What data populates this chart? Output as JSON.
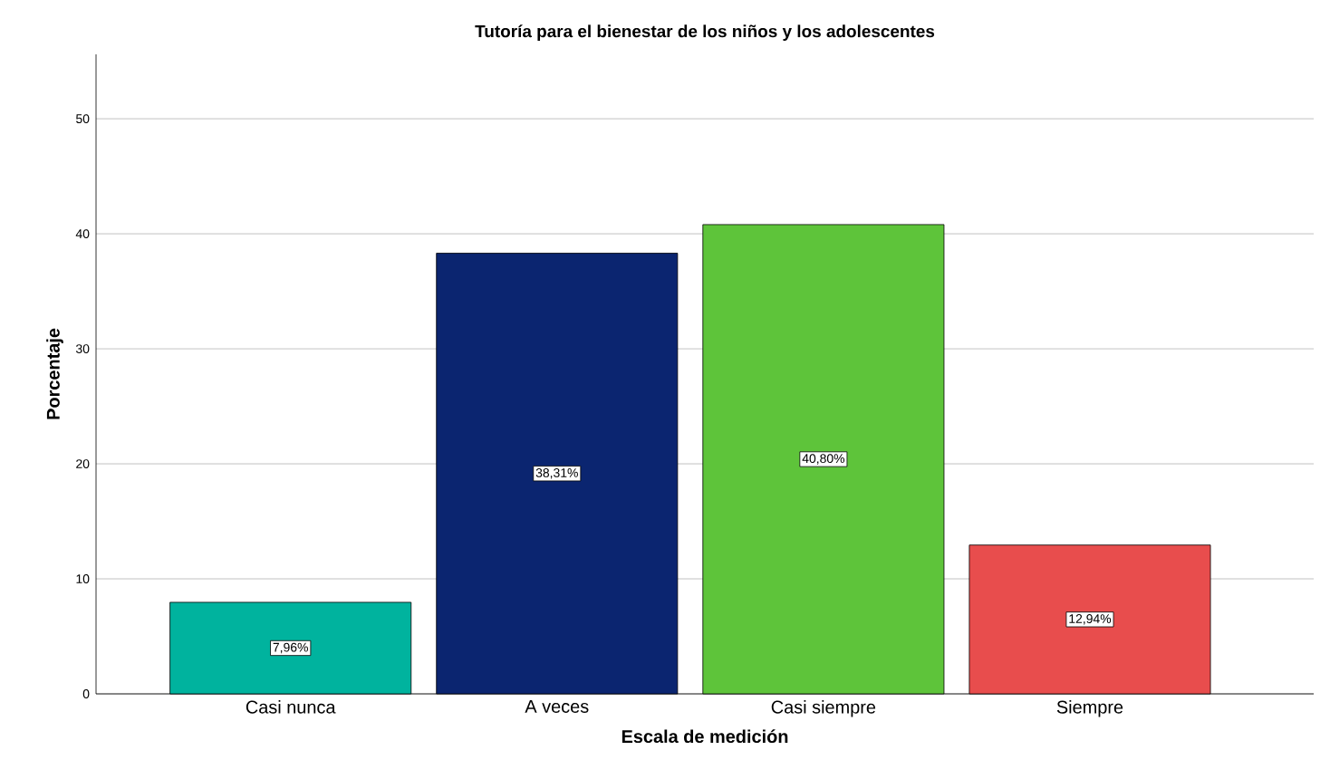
{
  "chart_data": {
    "type": "bar",
    "title": "Tutoría para el bienestar de los niños y los adolescentes",
    "xlabel": "Escala de medición",
    "ylabel": "Porcentaje",
    "categories": [
      "Casi nunca",
      "A veces",
      "Casi siempre",
      "Siempre"
    ],
    "values": [
      7.96,
      38.31,
      40.8,
      12.94
    ],
    "colors": [
      "#00b39e",
      "#0b2570",
      "#5ec43a",
      "#e84d4d"
    ],
    "value_labels": [
      "7,96%",
      "38,31%",
      "40,80%",
      "12,94%"
    ],
    "ylim": [
      0,
      55.6
    ],
    "yticks": [
      0,
      10,
      20,
      30,
      40,
      50
    ],
    "grid": "y"
  }
}
